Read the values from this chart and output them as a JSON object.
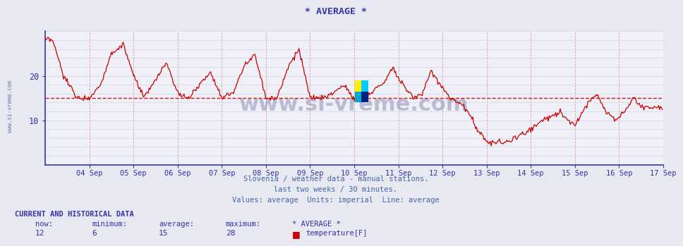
{
  "title": "* AVERAGE *",
  "bg_color": "#e8e8f0",
  "plot_bg_color": "#f0f0f8",
  "grid_color": "#d0d0e0",
  "vgrid_color": "#e0a0a0",
  "line_color": "#cc0000",
  "avg_line_color": "#cc0000",
  "avg_line_value": 15,
  "axis_color": "#3333aa",
  "title_color": "#3333aa",
  "subtitle_color": "#4466aa",
  "watermark_text": "www.si-vreme.com",
  "subtitle1": "Slovenia / weather data - manual stations.",
  "subtitle2": "last two weeks / 30 minutes.",
  "subtitle3": "Values: average  Units: imperial  Line: average",
  "footer_title": "CURRENT AND HISTORICAL DATA",
  "footer_labels": [
    "now:",
    "minimum:",
    "average:",
    "maximum:",
    "* AVERAGE *"
  ],
  "footer_values": [
    "12",
    "6",
    "15",
    "28"
  ],
  "footer_legend": "temperature[F]",
  "xlim_start": 0,
  "xlim_end": 672,
  "ylim_min": 0,
  "ylim_max": 30,
  "yticks": [
    10,
    20
  ],
  "xtick_labels": [
    "04 Sep",
    "05 Sep",
    "06 Sep",
    "07 Sep",
    "08 Sep",
    "09 Sep",
    "10 Sep",
    "11 Sep",
    "12 Sep",
    "13 Sep",
    "14 Sep",
    "15 Sep",
    "16 Sep",
    "17 Sep"
  ],
  "xtick_positions": [
    48,
    96,
    144,
    192,
    240,
    288,
    336,
    384,
    432,
    480,
    528,
    576,
    624,
    672
  ]
}
